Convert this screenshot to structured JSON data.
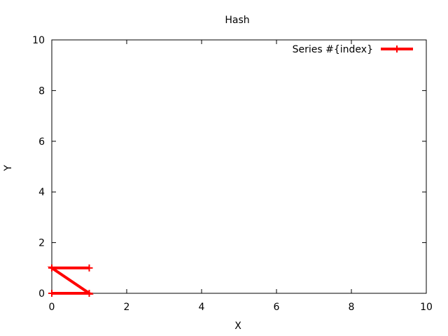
{
  "chart_data": {
    "type": "line",
    "title": "Hash",
    "xlabel": "X",
    "ylabel": "Y",
    "xlim": [
      0,
      10
    ],
    "ylim": [
      0,
      10
    ],
    "xticks": [
      0,
      2,
      4,
      6,
      8,
      10
    ],
    "yticks": [
      0,
      2,
      4,
      6,
      8,
      10
    ],
    "grid": false,
    "legend_position": "top-right",
    "series": [
      {
        "name": "Series #{index}",
        "color": "#ff0000",
        "x": [
          0,
          1,
          0,
          1
        ],
        "y": [
          0,
          0,
          1,
          1
        ]
      }
    ]
  }
}
